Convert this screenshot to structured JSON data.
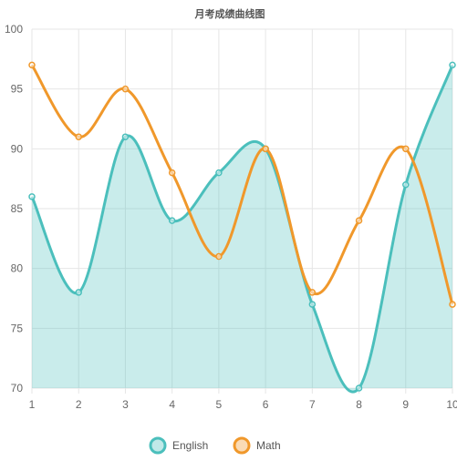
{
  "chart_data": {
    "type": "line",
    "title": "月考成绩曲线图",
    "x": [
      1,
      2,
      3,
      4,
      5,
      6,
      7,
      8,
      9,
      10
    ],
    "series": [
      {
        "name": "English",
        "values": [
          86,
          78,
          91,
          84,
          88,
          90,
          77,
          70,
          87,
          97
        ],
        "color": "#4bbfbc",
        "fill": true
      },
      {
        "name": "Math",
        "values": [
          97,
          91,
          95,
          88,
          81,
          90,
          78,
          84,
          90,
          77
        ],
        "color": "#f0982b",
        "fill": false
      }
    ],
    "xlim": [
      1,
      10
    ],
    "ylim": [
      70,
      100
    ],
    "yticks": [
      70,
      75,
      80,
      85,
      90,
      95,
      100
    ],
    "grid": true,
    "legend": "bottom"
  }
}
